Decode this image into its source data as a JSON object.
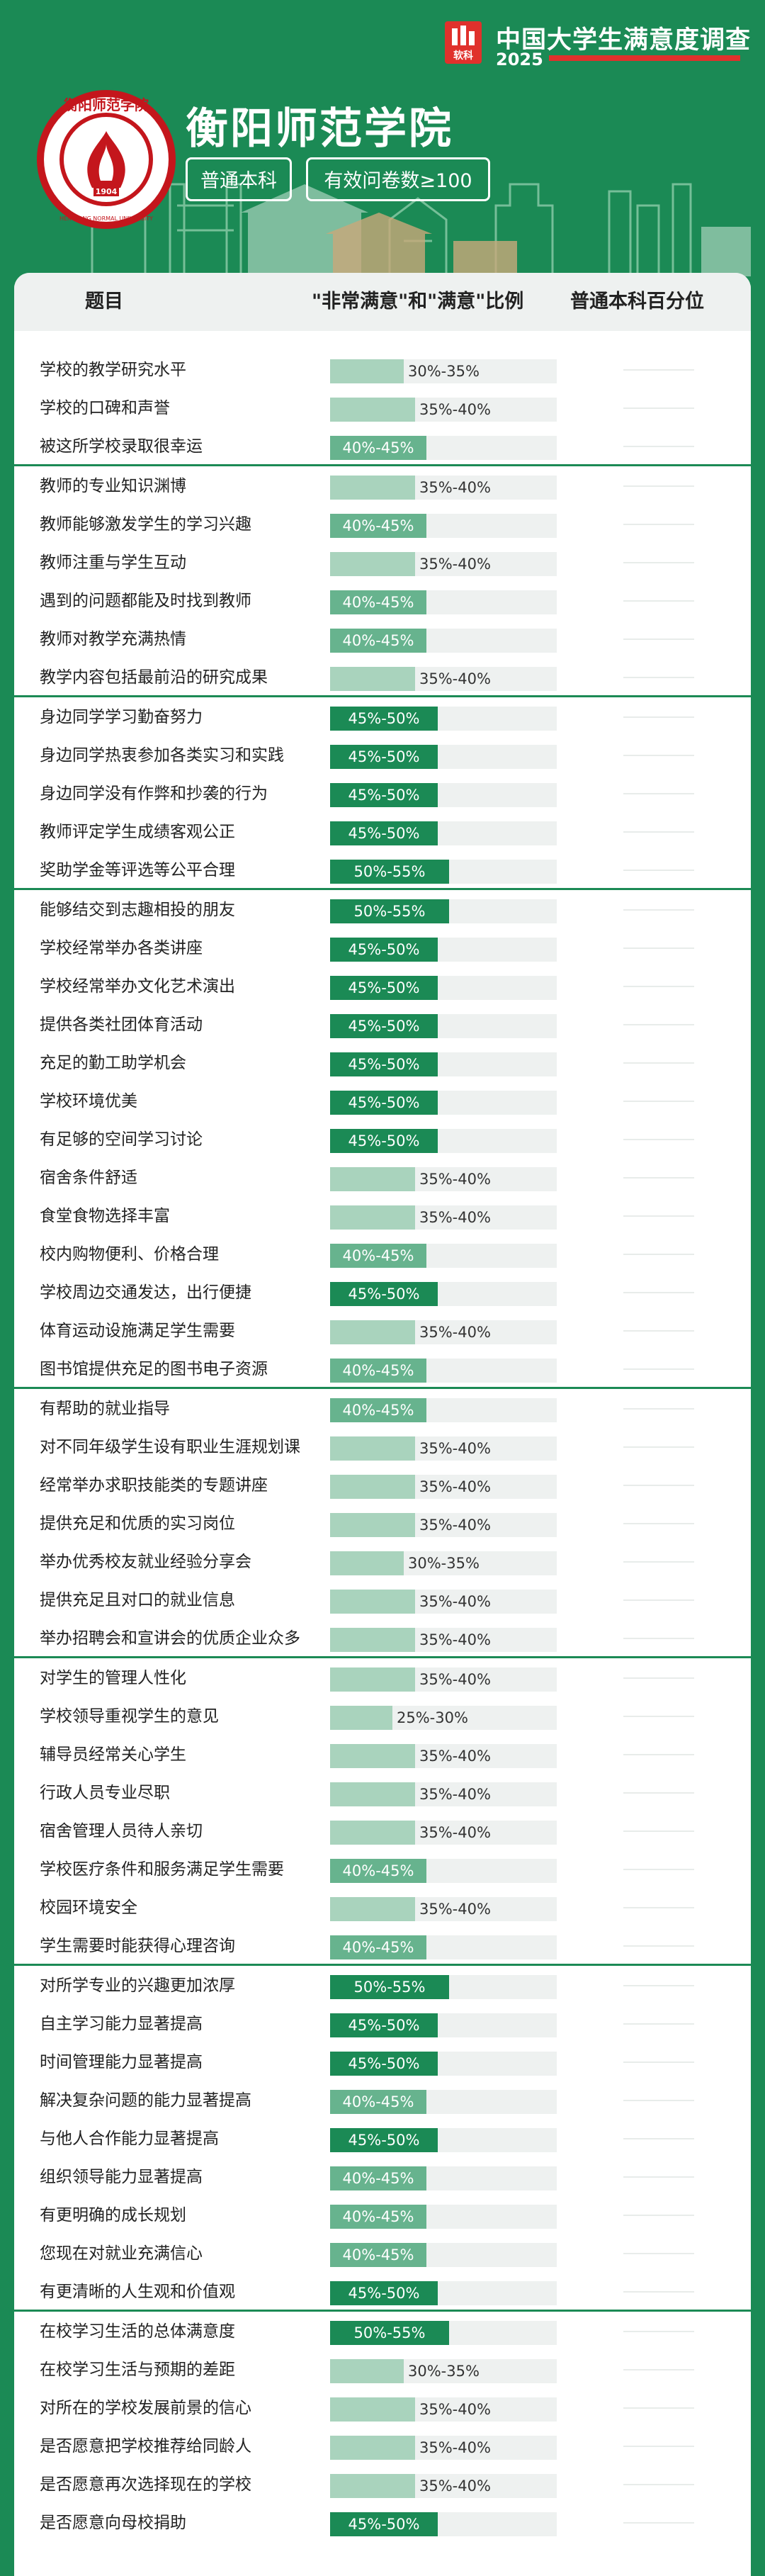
{
  "survey_title": "中国大学生满意度调查",
  "survey_year": "2025",
  "survey_logo_text": "软科",
  "school_name": "衡阳师范学院",
  "emblem_text": "衡阳师范学院",
  "emblem_text_en": "HENGYANG NORMAL UNIVERSITY",
  "emblem_year": "1904",
  "tags": [
    "普通本科",
    "有效问卷数≥100"
  ],
  "columns": [
    "题目",
    "\"非常满意\"和\"满意\"比例",
    "普通本科百分位"
  ],
  "colors": {
    "green": "#1b8a55",
    "mid": "#67b38e",
    "light": "#a9d3bd",
    "track": "#eef1f0",
    "red": "#e0312c"
  },
  "groups": [
    {
      "rows": [
        {
          "label": "学校的教学研究水平",
          "range": "30%-35%",
          "pct": 32.5
        },
        {
          "label": "学校的口碑和声誉",
          "range": "35%-40%",
          "pct": 37.5
        },
        {
          "label": "被这所学校录取很幸运",
          "range": "40%-45%",
          "pct": 42.5
        }
      ]
    },
    {
      "rows": [
        {
          "label": "教师的专业知识渊博",
          "range": "35%-40%",
          "pct": 37.5
        },
        {
          "label": "教师能够激发学生的学习兴趣",
          "range": "40%-45%",
          "pct": 42.5
        },
        {
          "label": "教师注重与学生互动",
          "range": "35%-40%",
          "pct": 37.5
        },
        {
          "label": "遇到的问题都能及时找到教师",
          "range": "40%-45%",
          "pct": 42.5
        },
        {
          "label": "教师对教学充满热情",
          "range": "40%-45%",
          "pct": 42.5
        },
        {
          "label": "教学内容包括最前沿的研究成果",
          "range": "35%-40%",
          "pct": 37.5
        }
      ]
    },
    {
      "rows": [
        {
          "label": "身边同学学习勤奋努力",
          "range": "45%-50%",
          "pct": 47.5
        },
        {
          "label": "身边同学热衷参加各类实习和实践",
          "range": "45%-50%",
          "pct": 47.5
        },
        {
          "label": "身边同学没有作弊和抄袭的行为",
          "range": "45%-50%",
          "pct": 47.5
        },
        {
          "label": "教师评定学生成绩客观公正",
          "range": "45%-50%",
          "pct": 47.5
        },
        {
          "label": "奖助学金等评选等公平合理",
          "range": "50%-55%",
          "pct": 52.5
        }
      ]
    },
    {
      "rows": [
        {
          "label": "能够结交到志趣相投的朋友",
          "range": "50%-55%",
          "pct": 52.5
        },
        {
          "label": "学校经常举办各类讲座",
          "range": "45%-50%",
          "pct": 47.5
        },
        {
          "label": "学校经常举办文化艺术演出",
          "range": "45%-50%",
          "pct": 47.5
        },
        {
          "label": "提供各类社团体育活动",
          "range": "45%-50%",
          "pct": 47.5
        },
        {
          "label": "充足的勤工助学机会",
          "range": "45%-50%",
          "pct": 47.5
        },
        {
          "label": "学校环境优美",
          "range": "45%-50%",
          "pct": 47.5
        },
        {
          "label": "有足够的空间学习讨论",
          "range": "45%-50%",
          "pct": 47.5
        },
        {
          "label": "宿舍条件舒适",
          "range": "35%-40%",
          "pct": 37.5
        },
        {
          "label": "食堂食物选择丰富",
          "range": "35%-40%",
          "pct": 37.5
        },
        {
          "label": "校内购物便利、价格合理",
          "range": "40%-45%",
          "pct": 42.5
        },
        {
          "label": "学校周边交通发达，出行便捷",
          "range": "45%-50%",
          "pct": 47.5
        },
        {
          "label": "体育运动设施满足学生需要",
          "range": "35%-40%",
          "pct": 37.5
        },
        {
          "label": "图书馆提供充足的图书电子资源",
          "range": "40%-45%",
          "pct": 42.5
        }
      ]
    },
    {
      "rows": [
        {
          "label": "有帮助的就业指导",
          "range": "40%-45%",
          "pct": 42.5
        },
        {
          "label": "对不同年级学生设有职业生涯规划课",
          "range": "35%-40%",
          "pct": 37.5
        },
        {
          "label": "经常举办求职技能类的专题讲座",
          "range": "35%-40%",
          "pct": 37.5
        },
        {
          "label": "提供充足和优质的实习岗位",
          "range": "35%-40%",
          "pct": 37.5
        },
        {
          "label": "举办优秀校友就业经验分享会",
          "range": "30%-35%",
          "pct": 32.5
        },
        {
          "label": "提供充足且对口的就业信息",
          "range": "35%-40%",
          "pct": 37.5
        },
        {
          "label": "举办招聘会和宣讲会的优质企业众多",
          "range": "35%-40%",
          "pct": 37.5
        }
      ]
    },
    {
      "rows": [
        {
          "label": "对学生的管理人性化",
          "range": "35%-40%",
          "pct": 37.5
        },
        {
          "label": "学校领导重视学生的意见",
          "range": "25%-30%",
          "pct": 27.5
        },
        {
          "label": "辅导员经常关心学生",
          "range": "35%-40%",
          "pct": 37.5
        },
        {
          "label": "行政人员专业尽职",
          "range": "35%-40%",
          "pct": 37.5
        },
        {
          "label": "宿舍管理人员待人亲切",
          "range": "35%-40%",
          "pct": 37.5
        },
        {
          "label": "学校医疗条件和服务满足学生需要",
          "range": "40%-45%",
          "pct": 42.5
        },
        {
          "label": "校园环境安全",
          "range": "35%-40%",
          "pct": 37.5
        },
        {
          "label": "学生需要时能获得心理咨询",
          "range": "40%-45%",
          "pct": 42.5
        }
      ]
    },
    {
      "rows": [
        {
          "label": "对所学专业的兴趣更加浓厚",
          "range": "50%-55%",
          "pct": 52.5
        },
        {
          "label": "自主学习能力显著提高",
          "range": "45%-50%",
          "pct": 47.5
        },
        {
          "label": "时间管理能力显著提高",
          "range": "45%-50%",
          "pct": 47.5
        },
        {
          "label": "解决复杂问题的能力显著提高",
          "range": "40%-45%",
          "pct": 42.5
        },
        {
          "label": "与他人合作能力显著提高",
          "range": "45%-50%",
          "pct": 47.5
        },
        {
          "label": "组织领导能力显著提高",
          "range": "40%-45%",
          "pct": 42.5
        },
        {
          "label": "有更明确的成长规划",
          "range": "40%-45%",
          "pct": 42.5
        },
        {
          "label": "您现在对就业充满信心",
          "range": "40%-45%",
          "pct": 42.5
        },
        {
          "label": "有更清晰的人生观和价值观",
          "range": "45%-50%",
          "pct": 47.5
        }
      ]
    },
    {
      "rows": [
        {
          "label": "在校学习生活的总体满意度",
          "range": "50%-55%",
          "pct": 52.5
        },
        {
          "label": "在校学习生活与预期的差距",
          "range": "30%-35%",
          "pct": 32.5
        },
        {
          "label": "对所在的学校发展前景的信心",
          "range": "35%-40%",
          "pct": 37.5
        },
        {
          "label": "是否愿意把学校推荐给同龄人",
          "range": "35%-40%",
          "pct": 37.5
        },
        {
          "label": "是否愿意再次选择现在的学校",
          "range": "35%-40%",
          "pct": 37.5
        },
        {
          "label": "是否愿意向母校捐助",
          "range": "45%-50%",
          "pct": 47.5
        }
      ]
    }
  ]
}
